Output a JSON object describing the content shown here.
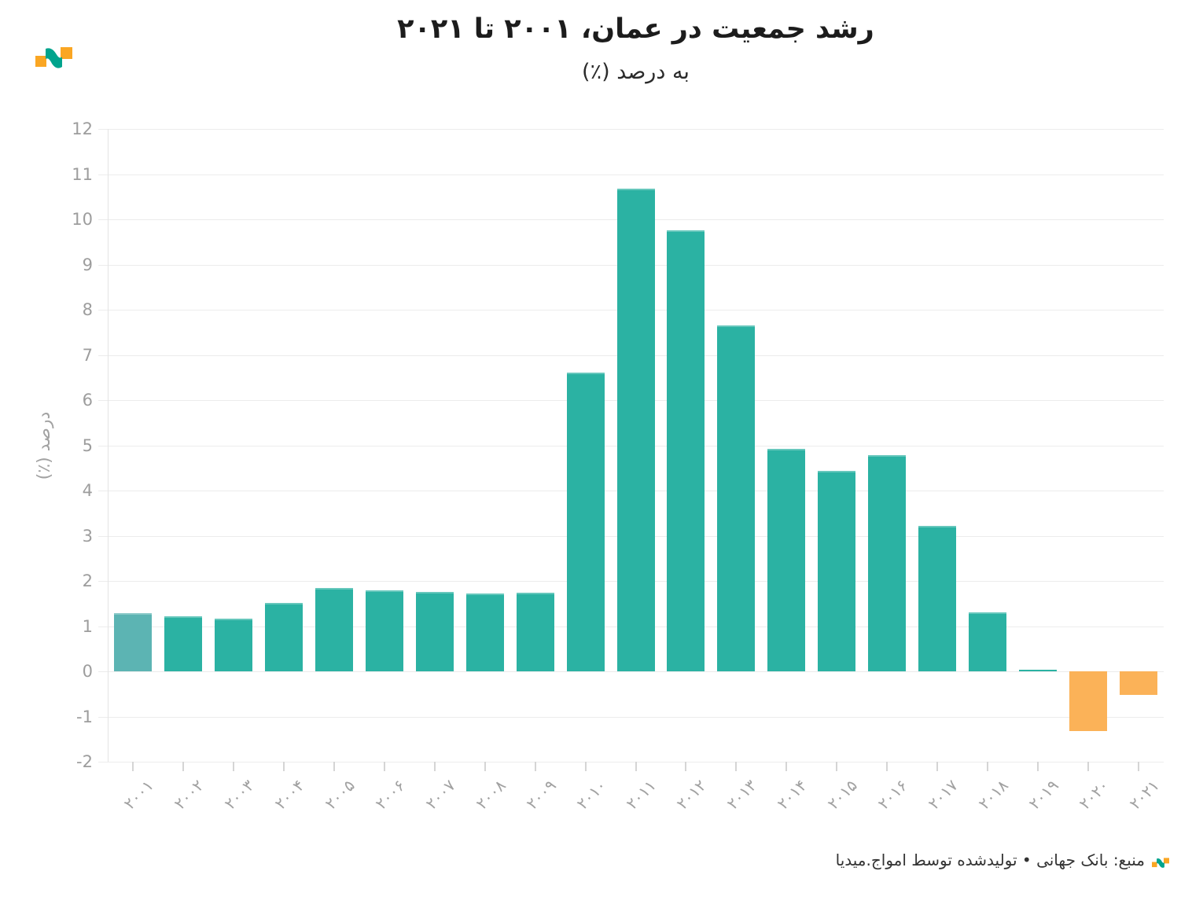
{
  "page": {
    "background": "#ffffff",
    "direction": "rtl"
  },
  "brand": {
    "logo": "amwaj-media-wave-mark",
    "orange": "#faa623",
    "teal": "#00a48d"
  },
  "header": {
    "title": "رشد جمعیت در عمان، ۲۰۰۱ تا ۲۰۲۱",
    "subtitle": "به درصد (٪)"
  },
  "chart_data": {
    "type": "bar",
    "title": "رشد جمعیت در عمان، ۲۰۰۱ تا ۲۰۲۱",
    "subtitle": "به درصد (٪)",
    "ylabel": "درصد (٪)",
    "xlabel": "",
    "ylim": [
      -2,
      12
    ],
    "ytick_step": 1,
    "ytick_labels": [
      "12",
      "11",
      "10",
      "9",
      "8",
      "7",
      "6",
      "5",
      "4",
      "3",
      "2",
      "1",
      "0",
      "-1",
      "-2"
    ],
    "grid": true,
    "legend_position": "none",
    "categories": [
      "۲۰۰۱",
      "۲۰۰۲",
      "۲۰۰۳",
      "۲۰۰۴",
      "۲۰۰۵",
      "۲۰۰۶",
      "۲۰۰۷",
      "۲۰۰۸",
      "۲۰۰۹",
      "۲۰۱۰",
      "۲۰۱۱",
      "۲۰۱۲",
      "۲۰۱۳",
      "۲۰۱۴",
      "۲۰۱۵",
      "۲۰۱۶",
      "۲۰۱۷",
      "۲۰۱۸",
      "۲۰۱۹",
      "۲۰۲۰",
      "۲۰۲۱"
    ],
    "values": [
      1.28,
      1.21,
      1.16,
      1.52,
      1.85,
      1.79,
      1.75,
      1.72,
      1.74,
      6.61,
      10.68,
      9.76,
      7.65,
      4.92,
      4.44,
      4.79,
      3.21,
      1.3,
      0.03,
      -1.33,
      -0.53
    ],
    "colors": {
      "positive": "#2bb2a3",
      "first_bar_muted": "#5cb4b3",
      "negative": "#fbb258",
      "gridline": "#ececec",
      "axis_line": "#e4e4e4",
      "tick": "#d5d5d5",
      "axis_text": "#9d9d9d"
    }
  },
  "footer": {
    "source_text": "منبع: بانک جهانی • تولیدشده توسط امواج.میدیا"
  }
}
